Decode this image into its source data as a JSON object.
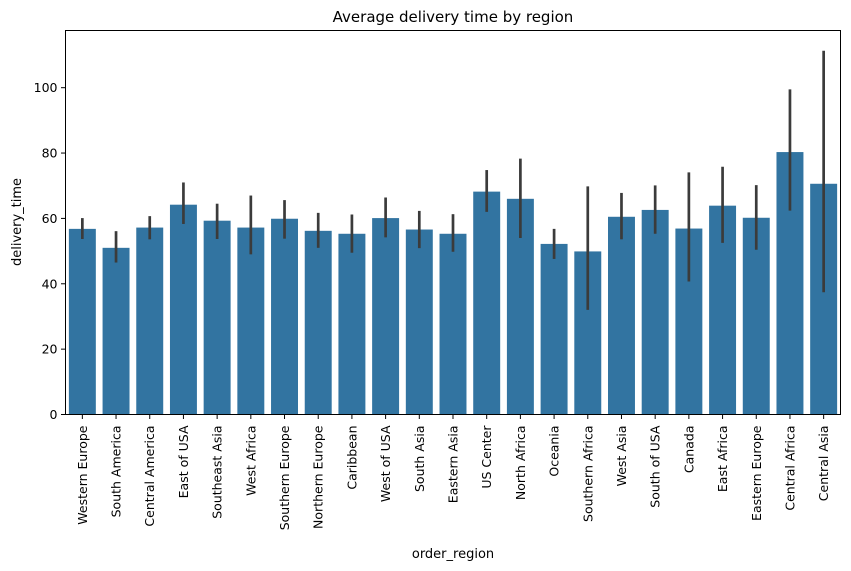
{
  "chart_data": {
    "type": "bar",
    "title": "Average delivery time by region",
    "xlabel": "order_region",
    "ylabel": "delivery_time",
    "ylim": [
      0,
      117.5
    ],
    "yticks": [
      0,
      20,
      40,
      60,
      80,
      100
    ],
    "ytick_labels": [
      "0",
      "20",
      "40",
      "60",
      "80",
      "100"
    ],
    "grid": false,
    "bar_color": "#3274a1",
    "errorbar_color": "#3b3b3b",
    "categories": [
      "Western Europe",
      "South America",
      "Central America",
      "East of USA",
      "Southeast Asia",
      "West Africa",
      "Southern Europe",
      "Northern Europe",
      "Caribbean",
      "West of USA",
      "South Asia",
      "Eastern Asia",
      "US Center",
      "North Africa",
      "Oceania",
      "Southern Africa",
      "West Asia",
      "South of  USA",
      "Canada",
      "East Africa",
      "Eastern Europe",
      "Central Africa",
      "Central Asia"
    ],
    "values": [
      56.8,
      51.0,
      57.2,
      64.2,
      59.3,
      57.2,
      59.9,
      56.2,
      55.3,
      60.1,
      56.6,
      55.3,
      68.2,
      66.0,
      52.2,
      49.9,
      60.5,
      62.6,
      56.9,
      63.9,
      60.2,
      80.3,
      70.6
    ],
    "error_low": [
      53.7,
      46.5,
      53.6,
      58.3,
      53.7,
      49.0,
      53.8,
      51.0,
      49.5,
      54.2,
      50.9,
      49.8,
      62.0,
      54.0,
      47.6,
      32.0,
      53.6,
      55.3,
      40.7,
      52.5,
      50.4,
      62.4,
      37.4
    ],
    "error_high": [
      60.1,
      56.1,
      60.7,
      71.0,
      64.5,
      67.0,
      65.6,
      61.7,
      61.2,
      66.4,
      62.3,
      61.3,
      74.8,
      78.3,
      56.8,
      69.8,
      67.8,
      70.1,
      74.1,
      75.8,
      70.2,
      99.5,
      111.3
    ]
  }
}
